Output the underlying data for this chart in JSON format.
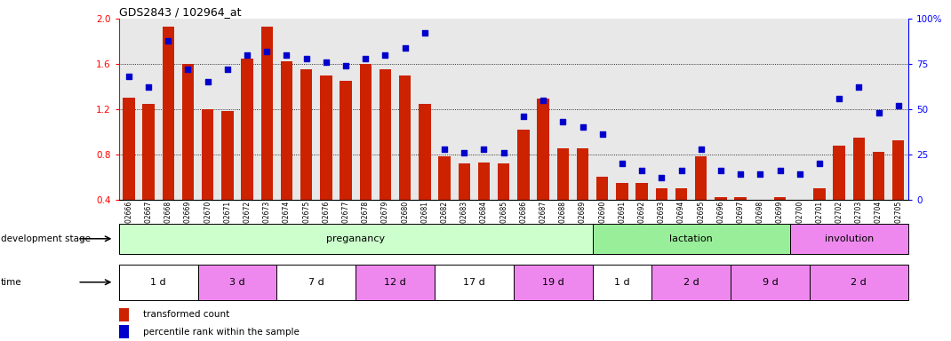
{
  "title": "GDS2843 / 102964_at",
  "samples": [
    "GSM202666",
    "GSM202667",
    "GSM202668",
    "GSM202669",
    "GSM202670",
    "GSM202671",
    "GSM202672",
    "GSM202673",
    "GSM202674",
    "GSM202675",
    "GSM202676",
    "GSM202677",
    "GSM202678",
    "GSM202679",
    "GSM202680",
    "GSM202681",
    "GSM202682",
    "GSM202683",
    "GSM202684",
    "GSM202685",
    "GSM202686",
    "GSM202687",
    "GSM202688",
    "GSM202689",
    "GSM202690",
    "GSM202691",
    "GSM202692",
    "GSM202693",
    "GSM202694",
    "GSM202695",
    "GSM202696",
    "GSM202697",
    "GSM202698",
    "GSM202699",
    "GSM202700",
    "GSM202701",
    "GSM202702",
    "GSM202703",
    "GSM202704",
    "GSM202705"
  ],
  "bar_values": [
    1.3,
    1.25,
    1.93,
    1.6,
    1.2,
    1.18,
    1.65,
    1.93,
    1.62,
    1.55,
    1.5,
    1.45,
    1.6,
    1.55,
    1.5,
    1.25,
    0.78,
    0.72,
    0.73,
    0.72,
    1.02,
    1.29,
    0.85,
    0.85,
    0.6,
    0.55,
    0.55,
    0.5,
    0.5,
    0.78,
    0.42,
    0.42,
    0.4,
    0.42,
    0.4,
    0.5,
    0.88,
    0.95,
    0.82,
    0.92
  ],
  "percentile_values": [
    68,
    62,
    88,
    72,
    65,
    72,
    80,
    82,
    80,
    78,
    76,
    74,
    78,
    80,
    84,
    92,
    28,
    26,
    28,
    26,
    46,
    55,
    43,
    40,
    36,
    20,
    16,
    12,
    16,
    28,
    16,
    14,
    14,
    16,
    14,
    20,
    56,
    62,
    48,
    52
  ],
  "bar_color": "#cc2200",
  "dot_color": "#0000cc",
  "ylim_left": [
    0.4,
    2.0
  ],
  "ylim_right": [
    0,
    100
  ],
  "yticks_left": [
    0.4,
    0.8,
    1.2,
    1.6,
    2.0
  ],
  "yticks_right": [
    0,
    25,
    50,
    75,
    100
  ],
  "grid_values": [
    0.8,
    1.2,
    1.6
  ],
  "development_stages": [
    {
      "label": "preganancy",
      "start": 0,
      "end": 24,
      "color": "#ccffcc"
    },
    {
      "label": "lactation",
      "start": 24,
      "end": 34,
      "color": "#99ee99"
    },
    {
      "label": "involution",
      "start": 34,
      "end": 40,
      "color": "#ee88ee"
    }
  ],
  "time_periods": [
    {
      "label": "1 d",
      "start": 0,
      "end": 4,
      "color": "#ffffff"
    },
    {
      "label": "3 d",
      "start": 4,
      "end": 8,
      "color": "#ee88ee"
    },
    {
      "label": "7 d",
      "start": 8,
      "end": 12,
      "color": "#ffffff"
    },
    {
      "label": "12 d",
      "start": 12,
      "end": 16,
      "color": "#ee88ee"
    },
    {
      "label": "17 d",
      "start": 16,
      "end": 20,
      "color": "#ffffff"
    },
    {
      "label": "19 d",
      "start": 20,
      "end": 24,
      "color": "#ee88ee"
    },
    {
      "label": "1 d",
      "start": 24,
      "end": 27,
      "color": "#ffffff"
    },
    {
      "label": "2 d",
      "start": 27,
      "end": 31,
      "color": "#ee88ee"
    },
    {
      "label": "9 d",
      "start": 31,
      "end": 35,
      "color": "#ee88ee"
    },
    {
      "label": "2 d",
      "start": 35,
      "end": 40,
      "color": "#ee88ee"
    }
  ],
  "legend_bar_label": "transformed count",
  "legend_dot_label": "percentile rank within the sample",
  "dev_stage_label": "development stage",
  "time_label": "time",
  "bg_color": "#d0d0d0"
}
